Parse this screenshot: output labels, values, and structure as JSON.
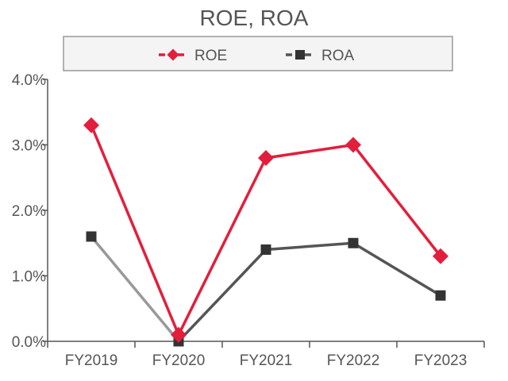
{
  "chart_data": {
    "type": "line",
    "title": "ROE, ROA",
    "xlabel": "",
    "ylabel": "",
    "categories": [
      "FY2019",
      "FY2020",
      "FY2021",
      "FY2022",
      "FY2023"
    ],
    "ylim": [
      0,
      4.0
    ],
    "yticks": [
      0,
      1.0,
      2.0,
      3.0,
      4.0
    ],
    "ytick_labels": [
      "0.0%",
      "1.0%",
      "2.0%",
      "3.0%",
      "4.0%"
    ],
    "grid": false,
    "legend_position": "top",
    "series": [
      {
        "name": "ROE",
        "values": [
          3.3,
          0.1,
          2.8,
          3.0,
          1.3
        ],
        "color": "#e31e3c",
        "marker": "diamond"
      },
      {
        "name": "ROA",
        "values": [
          1.6,
          0.0,
          1.4,
          1.5,
          0.7
        ],
        "color": "#555555",
        "first_segment_color": "#999999",
        "marker": "square"
      }
    ]
  }
}
